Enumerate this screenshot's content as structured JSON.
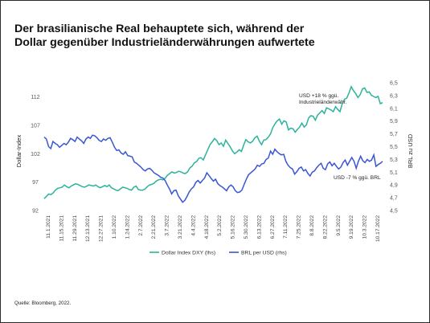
{
  "header": {
    "title_line1": "Der brasilianische Real behauptete sich, während der",
    "title_line2": "Dollar gegenüber Industrieländerwährungen aufwertete"
  },
  "footer": {
    "source": "Quelle: Bloomberg, 2022."
  },
  "colors": {
    "dxy": "#2bb39b",
    "brl": "#3a56d4"
  },
  "chart_data": {
    "type": "line",
    "y_left_label": "Dollar-Index",
    "y_right_label": "BRL zu USD",
    "y_left_ticks": [
      "92",
      "97",
      "102",
      "107",
      "112"
    ],
    "y_right_ticks": [
      "4,5",
      "4,7",
      "4,9",
      "5,1",
      "5,3",
      "5,5",
      "5,7",
      "5,9",
      "6,1",
      "6,3",
      "6,5"
    ],
    "y_left_lim": [
      92,
      114.5
    ],
    "y_right_lim": [
      4.5,
      6.5
    ],
    "x_tick_labels": [
      "11.1.2021",
      "11.15.2021",
      "11.29.2021",
      "12.13.2021",
      "12.27.2021",
      "1.10.2022",
      "1.24.2022",
      "2.7.2022",
      "2.21.2022",
      "3.7.2022",
      "3.21.2022",
      "4.4.2022",
      "4.18.2022",
      "5.2.2022",
      "5.16.2022",
      "5.30.2022",
      "6.13.2022",
      "6.27.2022",
      "7.11.2022",
      "7.25.2022",
      "8.8.2022",
      "8.22.2022",
      "9.5.2022",
      "9.19.2022",
      "10.3.2022",
      "10.17.2022"
    ],
    "annotations": {
      "dxy_line1": "USD +18 % ggü.",
      "dxy_line2": "Industrieländerwähr.",
      "brl": "USD -7 % ggü. BRL"
    },
    "series": [
      {
        "name": "Dollar Index DXY (lhs)",
        "axis": "left",
        "values": [
          94.1,
          94.5,
          94.9,
          94.8,
          95.1,
          95.6,
          95.9,
          96.0,
          96.1,
          96.5,
          96.2,
          96.0,
          96.3,
          96.5,
          96.7,
          96.6,
          96.4,
          96.2,
          96.1,
          96.3,
          96.5,
          96.4,
          96.3,
          96.5,
          96.2,
          96.0,
          96.2,
          96.4,
          96.2,
          96.5,
          96.0,
          95.8,
          95.6,
          95.5,
          95.8,
          96.1,
          96.0,
          95.9,
          95.7,
          95.6,
          96.1,
          96.3,
          95.7,
          95.6,
          95.6,
          95.8,
          96.2,
          96.5,
          96.6,
          96.8,
          97.2,
          97.4,
          97.5,
          97.4,
          97.7,
          98.2,
          98.5,
          98.8,
          98.6,
          98.7,
          98.9,
          98.8,
          98.6,
          98.5,
          98.8,
          99.5,
          99.8,
          100.4,
          100.6,
          101.2,
          101.3,
          100.9,
          101.8,
          102.7,
          103.6,
          104.1,
          104.7,
          104.3,
          103.6,
          103.9,
          103.3,
          104.4,
          103.8,
          103.2,
          102.5,
          102.0,
          102.3,
          102.7,
          102.4,
          103.5,
          104.5,
          104.1,
          103.9,
          104.2,
          104.8,
          105.1,
          104.2,
          103.6,
          104.4,
          104.5,
          104.9,
          105.5,
          106.6,
          107.3,
          107.8,
          108.1,
          107.2,
          107.8,
          107.6,
          106.2,
          106.5,
          106.4,
          105.8,
          106.3,
          106.7,
          107.4,
          106.7,
          107.1,
          108.3,
          108.7,
          108.6,
          107.9,
          108.8,
          109.2,
          109.6,
          109.1,
          110.1,
          109.9,
          109.7,
          109.4,
          110.3,
          109.8,
          109.4,
          110.8,
          111.6,
          111.8,
          112.7,
          113.8,
          113.1,
          112.6,
          111.9,
          112.4,
          113.4,
          113.6,
          112.8,
          112.9,
          112.3,
          112.1,
          111.9,
          112.1,
          110.8,
          111.0
        ]
      },
      {
        "name": "BRL per USD (rhs)",
        "axis": "right",
        "values": [
          5.65,
          5.62,
          5.5,
          5.47,
          5.58,
          5.55,
          5.53,
          5.49,
          5.52,
          5.55,
          5.53,
          5.57,
          5.63,
          5.61,
          5.58,
          5.65,
          5.62,
          5.59,
          5.55,
          5.62,
          5.65,
          5.63,
          5.68,
          5.67,
          5.64,
          5.6,
          5.58,
          5.62,
          5.6,
          5.63,
          5.64,
          5.57,
          5.49,
          5.44,
          5.45,
          5.4,
          5.38,
          5.42,
          5.36,
          5.35,
          5.34,
          5.26,
          5.24,
          5.21,
          5.18,
          5.14,
          5.12,
          5.15,
          5.16,
          5.13,
          5.09,
          5.07,
          5.05,
          5.02,
          5.01,
          4.97,
          4.9,
          4.84,
          4.76,
          4.81,
          4.82,
          4.73,
          4.68,
          4.63,
          4.66,
          4.72,
          4.79,
          4.84,
          4.87,
          4.94,
          4.97,
          4.93,
          4.97,
          5.01,
          5.09,
          5.05,
          5.0,
          4.96,
          4.99,
          4.92,
          4.89,
          4.87,
          4.84,
          4.81,
          4.87,
          4.9,
          4.87,
          4.81,
          4.78,
          4.79,
          4.82,
          4.91,
          4.99,
          5.06,
          5.09,
          5.12,
          5.15,
          5.21,
          5.19,
          5.23,
          5.24,
          5.3,
          5.32,
          5.43,
          5.38,
          5.46,
          5.42,
          5.39,
          5.37,
          5.38,
          5.27,
          5.21,
          5.17,
          5.15,
          5.07,
          5.11,
          5.16,
          5.18,
          5.12,
          5.14,
          5.08,
          5.04,
          5.1,
          5.12,
          5.17,
          5.21,
          5.24,
          5.16,
          5.14,
          5.23,
          5.26,
          5.2,
          5.24,
          5.19,
          5.15,
          5.18,
          5.25,
          5.29,
          5.21,
          5.27,
          5.33,
          5.27,
          5.16,
          5.27,
          5.35,
          5.28,
          5.25,
          5.3,
          5.27,
          5.29,
          5.37,
          5.19,
          5.22,
          5.24,
          5.27
        ]
      }
    ]
  }
}
